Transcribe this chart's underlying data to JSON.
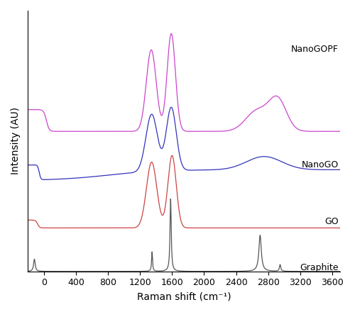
{
  "title": "",
  "xlabel": "Raman shift (cm⁻¹)",
  "ylabel": "Intensity (AU)",
  "xlim": [
    -200,
    3700
  ],
  "xticks": [
    0,
    400,
    800,
    1200,
    1600,
    2000,
    2400,
    2800,
    3200,
    3600
  ],
  "colors": {
    "graphite": "#555555",
    "GO": "#cc4444",
    "NanoGO": "#3333bb",
    "NanoGOPF": "#cc44cc"
  },
  "labels": {
    "graphite": "Graphite",
    "GO": "GO",
    "NanoGO": "NanoGO",
    "NanoGOPF": "NanoGOPF"
  },
  "offsets": {
    "graphite": 0.0,
    "GO": 0.18,
    "NanoGO": 0.38,
    "NanoGOPF": 0.58
  },
  "scale": 0.3
}
